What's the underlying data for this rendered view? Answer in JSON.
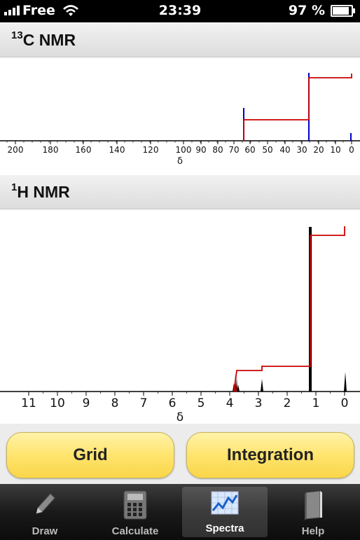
{
  "status_bar": {
    "carrier": "Free",
    "time": "23:39",
    "battery": "97 %",
    "battery_level": 0.97
  },
  "c13_panel": {
    "title_sup": "13",
    "title_main": "C NMR",
    "axis_label": "δ",
    "ticks": [
      "200",
      "180",
      "160",
      "140",
      "120",
      "100",
      "90",
      "80",
      "70",
      "60",
      "50",
      "40",
      "30",
      "20",
      "10",
      "0"
    ]
  },
  "h1_panel": {
    "title_sup": "1",
    "title_main": "H NMR",
    "axis_label": "δ",
    "ticks": [
      "11",
      "10",
      "9",
      "8",
      "7",
      "6",
      "5",
      "4",
      "3",
      "2",
      "1",
      "0"
    ]
  },
  "buttons": {
    "grid": "Grid",
    "integration": "Integration"
  },
  "tabs": [
    {
      "label": "Draw",
      "icon": "pencil-icon"
    },
    {
      "label": "Calculate",
      "icon": "calculator-icon"
    },
    {
      "label": "Spectra",
      "icon": "spectra-icon"
    },
    {
      "label": "Help",
      "icon": "book-icon"
    }
  ],
  "colors": {
    "spectrum": "#0000cc",
    "integral": "#cc0000",
    "button": "#ffe46e"
  }
}
